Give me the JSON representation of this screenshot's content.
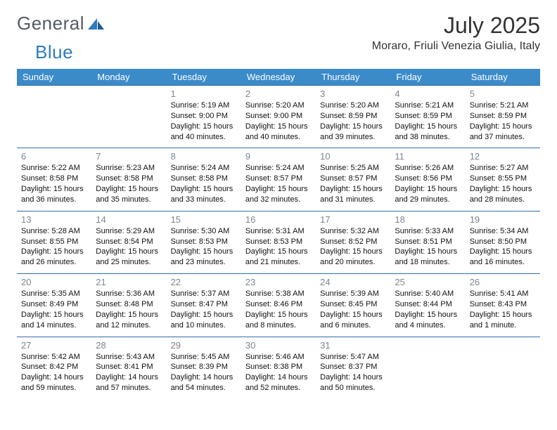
{
  "brand": {
    "part1": "General",
    "part2": "Blue"
  },
  "title": "July 2025",
  "location": "Moraro, Friuli Venezia Giulia, Italy",
  "colors": {
    "header_bg": "#3b8bc9",
    "header_text": "#ffffff",
    "row_border": "#2f6ea6",
    "daynum": "#7c8690",
    "text": "#111111",
    "brand_gray": "#555b60",
    "brand_blue": "#2f7bbf"
  },
  "days_of_week": [
    "Sunday",
    "Monday",
    "Tuesday",
    "Wednesday",
    "Thursday",
    "Friday",
    "Saturday"
  ],
  "weeks": [
    [
      null,
      null,
      {
        "n": "1",
        "sunrise": "5:19 AM",
        "sunset": "9:00 PM",
        "daylight": "15 hours and 40 minutes."
      },
      {
        "n": "2",
        "sunrise": "5:20 AM",
        "sunset": "9:00 PM",
        "daylight": "15 hours and 40 minutes."
      },
      {
        "n": "3",
        "sunrise": "5:20 AM",
        "sunset": "8:59 PM",
        "daylight": "15 hours and 39 minutes."
      },
      {
        "n": "4",
        "sunrise": "5:21 AM",
        "sunset": "8:59 PM",
        "daylight": "15 hours and 38 minutes."
      },
      {
        "n": "5",
        "sunrise": "5:21 AM",
        "sunset": "8:59 PM",
        "daylight": "15 hours and 37 minutes."
      }
    ],
    [
      {
        "n": "6",
        "sunrise": "5:22 AM",
        "sunset": "8:58 PM",
        "daylight": "15 hours and 36 minutes."
      },
      {
        "n": "7",
        "sunrise": "5:23 AM",
        "sunset": "8:58 PM",
        "daylight": "15 hours and 35 minutes."
      },
      {
        "n": "8",
        "sunrise": "5:24 AM",
        "sunset": "8:58 PM",
        "daylight": "15 hours and 33 minutes."
      },
      {
        "n": "9",
        "sunrise": "5:24 AM",
        "sunset": "8:57 PM",
        "daylight": "15 hours and 32 minutes."
      },
      {
        "n": "10",
        "sunrise": "5:25 AM",
        "sunset": "8:57 PM",
        "daylight": "15 hours and 31 minutes."
      },
      {
        "n": "11",
        "sunrise": "5:26 AM",
        "sunset": "8:56 PM",
        "daylight": "15 hours and 29 minutes."
      },
      {
        "n": "12",
        "sunrise": "5:27 AM",
        "sunset": "8:55 PM",
        "daylight": "15 hours and 28 minutes."
      }
    ],
    [
      {
        "n": "13",
        "sunrise": "5:28 AM",
        "sunset": "8:55 PM",
        "daylight": "15 hours and 26 minutes."
      },
      {
        "n": "14",
        "sunrise": "5:29 AM",
        "sunset": "8:54 PM",
        "daylight": "15 hours and 25 minutes."
      },
      {
        "n": "15",
        "sunrise": "5:30 AM",
        "sunset": "8:53 PM",
        "daylight": "15 hours and 23 minutes."
      },
      {
        "n": "16",
        "sunrise": "5:31 AM",
        "sunset": "8:53 PM",
        "daylight": "15 hours and 21 minutes."
      },
      {
        "n": "17",
        "sunrise": "5:32 AM",
        "sunset": "8:52 PM",
        "daylight": "15 hours and 20 minutes."
      },
      {
        "n": "18",
        "sunrise": "5:33 AM",
        "sunset": "8:51 PM",
        "daylight": "15 hours and 18 minutes."
      },
      {
        "n": "19",
        "sunrise": "5:34 AM",
        "sunset": "8:50 PM",
        "daylight": "15 hours and 16 minutes."
      }
    ],
    [
      {
        "n": "20",
        "sunrise": "5:35 AM",
        "sunset": "8:49 PM",
        "daylight": "15 hours and 14 minutes."
      },
      {
        "n": "21",
        "sunrise": "5:36 AM",
        "sunset": "8:48 PM",
        "daylight": "15 hours and 12 minutes."
      },
      {
        "n": "22",
        "sunrise": "5:37 AM",
        "sunset": "8:47 PM",
        "daylight": "15 hours and 10 minutes."
      },
      {
        "n": "23",
        "sunrise": "5:38 AM",
        "sunset": "8:46 PM",
        "daylight": "15 hours and 8 minutes."
      },
      {
        "n": "24",
        "sunrise": "5:39 AM",
        "sunset": "8:45 PM",
        "daylight": "15 hours and 6 minutes."
      },
      {
        "n": "25",
        "sunrise": "5:40 AM",
        "sunset": "8:44 PM",
        "daylight": "15 hours and 4 minutes."
      },
      {
        "n": "26",
        "sunrise": "5:41 AM",
        "sunset": "8:43 PM",
        "daylight": "15 hours and 1 minute."
      }
    ],
    [
      {
        "n": "27",
        "sunrise": "5:42 AM",
        "sunset": "8:42 PM",
        "daylight": "14 hours and 59 minutes."
      },
      {
        "n": "28",
        "sunrise": "5:43 AM",
        "sunset": "8:41 PM",
        "daylight": "14 hours and 57 minutes."
      },
      {
        "n": "29",
        "sunrise": "5:45 AM",
        "sunset": "8:39 PM",
        "daylight": "14 hours and 54 minutes."
      },
      {
        "n": "30",
        "sunrise": "5:46 AM",
        "sunset": "8:38 PM",
        "daylight": "14 hours and 52 minutes."
      },
      {
        "n": "31",
        "sunrise": "5:47 AM",
        "sunset": "8:37 PM",
        "daylight": "14 hours and 50 minutes."
      },
      null,
      null
    ]
  ],
  "labels": {
    "sunrise_prefix": "Sunrise: ",
    "sunset_prefix": "Sunset: ",
    "daylight_prefix": "Daylight: "
  }
}
